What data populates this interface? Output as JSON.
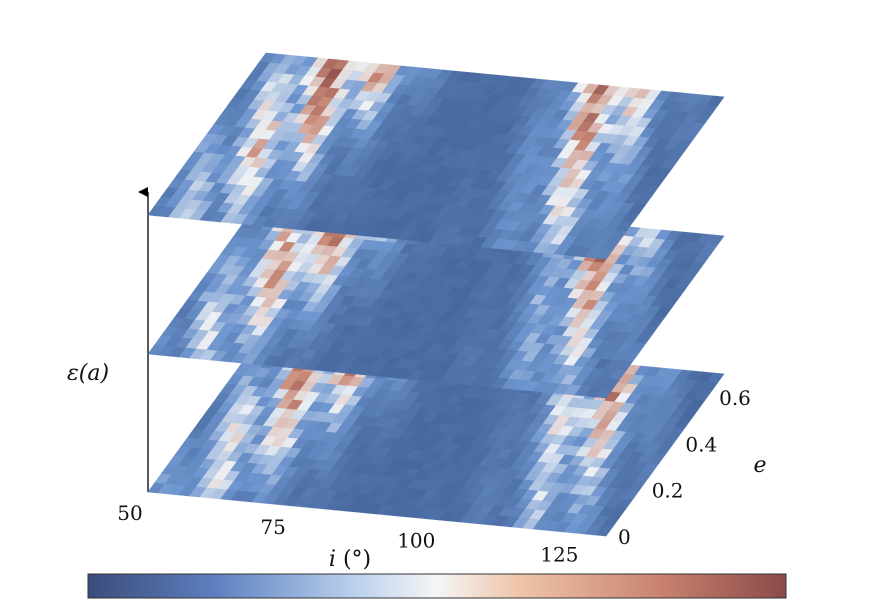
{
  "chart_data": {
    "type": "heatmap",
    "layers": 3,
    "xlabel": {
      "var": "i",
      "unit": "(°)"
    },
    "ylabel": "e",
    "zlabel": "ε(a)",
    "x_ticks": [
      "50",
      "75",
      "100",
      "125"
    ],
    "x_tick_values": [
      50,
      75,
      100,
      125
    ],
    "y_ticks": [
      "0",
      "0.2",
      "0.4",
      "0.6"
    ],
    "y_tick_values": [
      0,
      0.2,
      0.4,
      0.6
    ],
    "xlim": [
      50,
      130
    ],
    "ylim": [
      0,
      0.7
    ],
    "colorbar": {
      "colors": [
        "#3b4c7a",
        "#5d7fbf",
        "#b9d0ec",
        "#f5f5f5",
        "#eec4a8",
        "#c9826f",
        "#8a4a4a"
      ],
      "ticks": []
    },
    "colors": {
      "low": "#3b5a90",
      "mid_low": "#6f96cf",
      "mid": "#eef1f4",
      "high": "#c98a78",
      "very_high": "#8a4a48"
    }
  }
}
